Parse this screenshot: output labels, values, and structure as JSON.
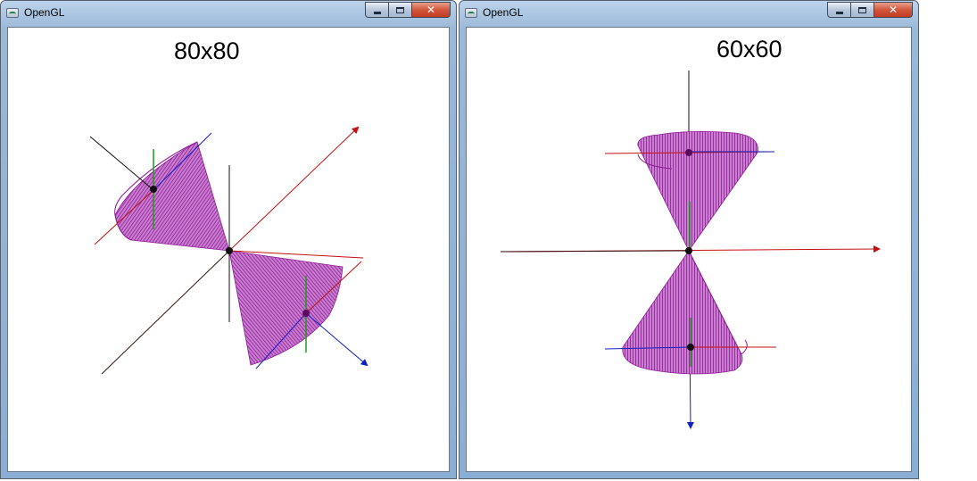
{
  "windows": [
    {
      "title": "OpenGL",
      "label": "80x80",
      "colors": {
        "cone": "#8e1a95",
        "x_axis": "#c41010",
        "y_axis": "#101010",
        "z_axis": "#1020c0",
        "local_axis": "#1c9a1c"
      }
    },
    {
      "title": "OpenGL",
      "label": "60x60",
      "colors": {
        "cone": "#8e1a95",
        "x_axis": "#c41010",
        "y_axis": "#101010",
        "z_axis": "#1020c0",
        "local_axis": "#1c9a1c"
      }
    }
  ],
  "controls": {
    "minimize_icon": "minimize-icon",
    "maximize_icon": "maximize-icon",
    "close_glyph": "✕"
  }
}
